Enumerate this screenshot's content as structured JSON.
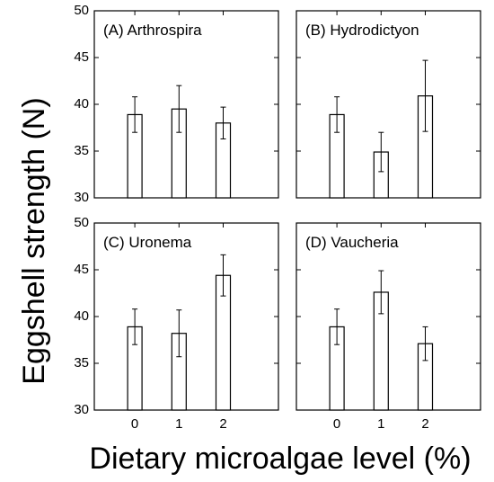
{
  "chart_data": {
    "type": "bar",
    "ylabel": "Eggshell strength (N)",
    "xlabel": "Dietary microalgae level (%)",
    "categories": [
      "0",
      "1",
      "2"
    ],
    "ylim": [
      30,
      50
    ],
    "yticks": [
      "30",
      "35",
      "40",
      "45",
      "50"
    ],
    "panels": [
      {
        "title": "(A) Arthrospira",
        "values": [
          38.9,
          39.5,
          38.0
        ],
        "errors": [
          1.9,
          2.5,
          1.7
        ]
      },
      {
        "title": "(B) Hydrodictyon",
        "values": [
          38.9,
          34.9,
          40.9
        ],
        "errors": [
          1.9,
          2.1,
          3.8
        ]
      },
      {
        "title": "(C) Uronema",
        "values": [
          38.9,
          38.2,
          44.4
        ],
        "errors": [
          1.9,
          2.5,
          2.2
        ]
      },
      {
        "title": "(D) Vaucheria",
        "values": [
          38.9,
          42.6,
          37.1
        ],
        "errors": [
          1.9,
          2.3,
          1.8
        ]
      }
    ]
  }
}
